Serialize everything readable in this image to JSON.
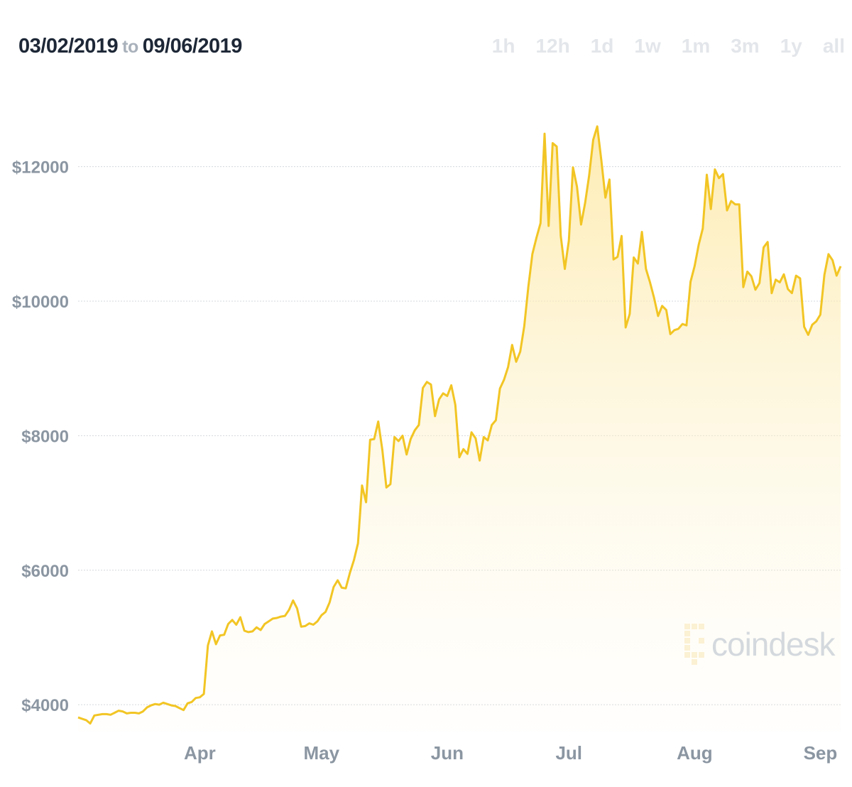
{
  "header": {
    "start_date": "03/02/2019",
    "to_label": "to",
    "end_date": "09/06/2019",
    "ranges": [
      "1h",
      "12h",
      "1d",
      "1w",
      "1m",
      "3m",
      "1y",
      "all"
    ]
  },
  "watermark": {
    "text": "coindesk"
  },
  "colors": {
    "line": "#f2c524",
    "fill": "#fdf2c8",
    "grid": "#d3d7dc",
    "ticks": "#8b96a2"
  },
  "chart_data": {
    "type": "area",
    "title": "",
    "xlabel": "",
    "ylabel": "",
    "grid": true,
    "ylim": [
      3600,
      13000
    ],
    "yticks": [
      {
        "value": 4000,
        "label": "$4000"
      },
      {
        "value": 6000,
        "label": "$6000"
      },
      {
        "value": 8000,
        "label": "$8000"
      },
      {
        "value": 10000,
        "label": "$10000"
      },
      {
        "value": 12000,
        "label": "$12000"
      }
    ],
    "xticks": [
      {
        "date": "2019-04-01",
        "label": "Apr"
      },
      {
        "date": "2019-05-01",
        "label": "May"
      },
      {
        "date": "2019-06-01",
        "label": "Jun"
      },
      {
        "date": "2019-07-01",
        "label": "Jul"
      },
      {
        "date": "2019-08-01",
        "label": "Aug"
      },
      {
        "date": "2019-09-01",
        "label": "Sep"
      }
    ],
    "series": [
      {
        "x": [
          "2019-03-02",
          "2019-03-04",
          "2019-03-05",
          "2019-03-06",
          "2019-03-08",
          "2019-03-09",
          "2019-03-10",
          "2019-03-11",
          "2019-03-12",
          "2019-03-13",
          "2019-03-14",
          "2019-03-15",
          "2019-03-16",
          "2019-03-17",
          "2019-03-18",
          "2019-03-19",
          "2019-03-20",
          "2019-03-21",
          "2019-03-22",
          "2019-03-23",
          "2019-03-25",
          "2019-03-26",
          "2019-03-27",
          "2019-03-28",
          "2019-03-29",
          "2019-03-30",
          "2019-03-31",
          "2019-04-01",
          "2019-04-02",
          "2019-04-03",
          "2019-04-04",
          "2019-04-05",
          "2019-04-06",
          "2019-04-07",
          "2019-04-08",
          "2019-04-09",
          "2019-04-10",
          "2019-04-11",
          "2019-04-12",
          "2019-04-13",
          "2019-04-14",
          "2019-04-15",
          "2019-04-16",
          "2019-04-17",
          "2019-04-18",
          "2019-04-19",
          "2019-04-20",
          "2019-04-21",
          "2019-04-22",
          "2019-04-23",
          "2019-04-24",
          "2019-04-25",
          "2019-04-26",
          "2019-04-27",
          "2019-04-28",
          "2019-04-29",
          "2019-04-30",
          "2019-05-01",
          "2019-05-02",
          "2019-05-03",
          "2019-05-04",
          "2019-05-05",
          "2019-05-06",
          "2019-05-07",
          "2019-05-08",
          "2019-05-09",
          "2019-05-10",
          "2019-05-11",
          "2019-05-12",
          "2019-05-13",
          "2019-05-14",
          "2019-05-15",
          "2019-05-16",
          "2019-05-17",
          "2019-05-18",
          "2019-05-19",
          "2019-05-20",
          "2019-05-21",
          "2019-05-22",
          "2019-05-23",
          "2019-05-24",
          "2019-05-25",
          "2019-05-26",
          "2019-05-27",
          "2019-05-28",
          "2019-05-29",
          "2019-05-30",
          "2019-05-31",
          "2019-06-01",
          "2019-06-02",
          "2019-06-03",
          "2019-06-04",
          "2019-06-05",
          "2019-06-06",
          "2019-06-07",
          "2019-06-08",
          "2019-06-09",
          "2019-06-10",
          "2019-06-11",
          "2019-06-12",
          "2019-06-13",
          "2019-06-14",
          "2019-06-15",
          "2019-06-16",
          "2019-06-17",
          "2019-06-18",
          "2019-06-19",
          "2019-06-20",
          "2019-06-21",
          "2019-06-22",
          "2019-06-23",
          "2019-06-24",
          "2019-06-25",
          "2019-06-26",
          "2019-06-27",
          "2019-06-28",
          "2019-06-29",
          "2019-06-30",
          "2019-07-01",
          "2019-07-02",
          "2019-07-03",
          "2019-07-04",
          "2019-07-05",
          "2019-07-06",
          "2019-07-07",
          "2019-07-08",
          "2019-07-09",
          "2019-07-10",
          "2019-07-11",
          "2019-07-12",
          "2019-07-13",
          "2019-07-14",
          "2019-07-15",
          "2019-07-16",
          "2019-07-17",
          "2019-07-18",
          "2019-07-19",
          "2019-07-20",
          "2019-07-21",
          "2019-07-22",
          "2019-07-23",
          "2019-07-24",
          "2019-07-25",
          "2019-07-26",
          "2019-07-27",
          "2019-07-28",
          "2019-07-29",
          "2019-07-30",
          "2019-07-31",
          "2019-08-01",
          "2019-08-02",
          "2019-08-03",
          "2019-08-04",
          "2019-08-05",
          "2019-08-06",
          "2019-08-07",
          "2019-08-08",
          "2019-08-09",
          "2019-08-10",
          "2019-08-11",
          "2019-08-12",
          "2019-08-13",
          "2019-08-14",
          "2019-08-15",
          "2019-08-16",
          "2019-08-17",
          "2019-08-18",
          "2019-08-19",
          "2019-08-20",
          "2019-08-21",
          "2019-08-22",
          "2019-08-23",
          "2019-08-24",
          "2019-08-25",
          "2019-08-26",
          "2019-08-27",
          "2019-08-28",
          "2019-08-29",
          "2019-08-30",
          "2019-08-31",
          "2019-09-01",
          "2019-09-02",
          "2019-09-03",
          "2019-09-04",
          "2019-09-05",
          "2019-09-06"
        ],
        "values": [
          3810,
          3770,
          3720,
          3840,
          3860,
          3860,
          3850,
          3880,
          3910,
          3900,
          3870,
          3880,
          3880,
          3870,
          3900,
          3960,
          3990,
          4010,
          4000,
          4030,
          3990,
          3980,
          3950,
          3920,
          4020,
          4040,
          4100,
          4110,
          4160,
          4880,
          5090,
          4900,
          5030,
          5040,
          5200,
          5260,
          5190,
          5300,
          5100,
          5080,
          5090,
          5150,
          5110,
          5200,
          5240,
          5280,
          5290,
          5310,
          5320,
          5410,
          5550,
          5430,
          5160,
          5170,
          5210,
          5190,
          5240,
          5330,
          5380,
          5520,
          5750,
          5850,
          5740,
          5730,
          5960,
          6150,
          6400,
          7260,
          7010,
          7940,
          7950,
          8210,
          7790,
          7230,
          7280,
          7980,
          7920,
          8000,
          7720,
          7950,
          8080,
          8160,
          8710,
          8800,
          8760,
          8290,
          8540,
          8630,
          8590,
          8750,
          8460,
          7680,
          7800,
          7730,
          8050,
          7960,
          7630,
          7980,
          7930,
          8160,
          8230,
          8700,
          8830,
          9020,
          9350,
          9100,
          9250,
          9630,
          10210,
          10700,
          10940,
          11160,
          12490,
          11120,
          12350,
          12300,
          10970,
          10480,
          10900,
          11990,
          11700,
          11140,
          11460,
          11870,
          12400,
          12600,
          12100,
          11540,
          11810,
          10620,
          10660,
          10970,
          9610,
          9810,
          10650,
          10560,
          11030,
          10480,
          10280,
          10050,
          9780,
          9930,
          9870,
          9510,
          9570,
          9590,
          9660,
          9640,
          10290,
          10520,
          10840,
          11080,
          11880,
          11370,
          11960,
          11830,
          11890,
          11350,
          11490,
          11440,
          11440,
          10210,
          10440,
          10370,
          10170,
          10270,
          10800,
          10880,
          10120,
          10320,
          10280,
          10400,
          10180,
          10120,
          10380,
          10340,
          9620,
          9500,
          9650,
          9700,
          9800,
          10390,
          10700,
          10610,
          10380,
          10520
        ]
      }
    ]
  }
}
